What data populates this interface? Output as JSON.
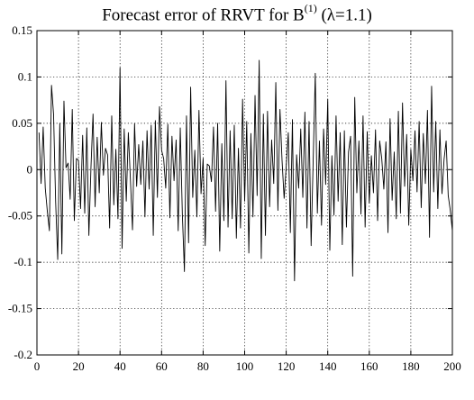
{
  "title": {
    "prefix": "Forecast error of RRVT for B",
    "superscript": "(1)",
    "suffix": " (λ=1.1)"
  },
  "colors": {
    "line": "#000000",
    "grid": "#000000",
    "axis": "#000000",
    "background": "#ffffff"
  },
  "chart_data": {
    "type": "line",
    "title": "Forecast error of RRVT for B(1) (λ=1.1)",
    "xlabel": "",
    "ylabel": "",
    "xlim": [
      0,
      200
    ],
    "ylim": [
      -0.2,
      0.15
    ],
    "grid": true,
    "grid_style": "dotted",
    "x_ticks": [
      0,
      20,
      40,
      60,
      80,
      100,
      120,
      140,
      160,
      180,
      200
    ],
    "x_tick_labels": [
      "0",
      "20",
      "40",
      "60",
      "80",
      "100",
      "120",
      "140",
      "160",
      "180",
      "200"
    ],
    "y_ticks": [
      0.15,
      0.1,
      0.05,
      0,
      -0.05,
      -0.1,
      -0.15,
      -0.2
    ],
    "y_tick_labels": [
      "0.15",
      "0.1",
      "0.05",
      "0",
      "-0.05",
      "-0.1",
      "-0.15",
      "-0.2"
    ],
    "series": [
      {
        "x_start": 1,
        "x_step": 1,
        "values": [
          0.04,
          -0.015,
          0.046,
          -0.02,
          -0.045,
          -0.066,
          0.091,
          0.06,
          -0.035,
          -0.097,
          0.05,
          -0.091,
          0.074,
          0.002,
          0.007,
          -0.032,
          0.065,
          -0.055,
          0.012,
          0.01,
          -0.042,
          0.037,
          -0.047,
          0.045,
          -0.071,
          0.002,
          0.06,
          -0.04,
          0.035,
          -0.025,
          0.051,
          -0.006,
          0.023,
          0.016,
          -0.063,
          0.058,
          -0.038,
          0.022,
          -0.053,
          0.11,
          -0.085,
          0.044,
          -0.034,
          0.04,
          -0.011,
          -0.065,
          0.05,
          -0.018,
          0.027,
          -0.016,
          0.031,
          -0.051,
          0.042,
          -0.021,
          0.048,
          -0.071,
          0.053,
          -0.03,
          0.068,
          0.021,
          0.012,
          -0.02,
          0.049,
          -0.052,
          0.036,
          -0.012,
          0.032,
          -0.066,
          0.045,
          -0.048,
          -0.11,
          0.058,
          -0.079,
          0.089,
          -0.03,
          0.021,
          -0.051,
          0.064,
          -0.026,
          0.012,
          -0.082,
          0.006,
          0.004,
          -0.013,
          0.046,
          -0.045,
          0.05,
          -0.088,
          0.028,
          -0.055,
          0.096,
          -0.062,
          0.042,
          -0.053,
          0.048,
          -0.074,
          0.023,
          -0.063,
          0.076,
          -0.034,
          0.052,
          -0.09,
          0.039,
          -0.051,
          0.08,
          -0.028,
          0.118,
          -0.096,
          0.06,
          -0.071,
          0.063,
          -0.04,
          0.032,
          -0.015,
          0.094,
          -0.044,
          0.065,
          0.01,
          -0.031,
          0.003,
          0.04,
          -0.068,
          0.054,
          -0.12,
          0.016,
          -0.02,
          0.044,
          -0.03,
          0.062,
          -0.063,
          0.052,
          -0.082,
          0.011,
          0.104,
          -0.047,
          0.031,
          -0.06,
          0.044,
          -0.016,
          0.076,
          -0.087,
          0.015,
          -0.049,
          0.058,
          -0.034,
          0.04,
          -0.081,
          0.042,
          -0.062,
          0.019,
          0.036,
          -0.115,
          0.078,
          -0.025,
          0.031,
          -0.048,
          0.058,
          -0.062,
          0.041,
          -0.036,
          0.015,
          -0.025,
          0.043,
          -0.055,
          0.031,
          0.012,
          -0.021,
          0.03,
          -0.068,
          0.055,
          -0.033,
          0.019,
          -0.053,
          0.063,
          -0.047,
          0.072,
          -0.018,
          0.038,
          -0.06,
          0.022,
          -0.012,
          0.042,
          -0.024,
          0.052,
          -0.041,
          0.039,
          -0.015,
          0.064,
          -0.073,
          0.09,
          -0.024,
          0.052,
          -0.042,
          0.043,
          -0.026,
          0.011,
          0.031,
          -0.028,
          -0.044,
          -0.066
        ]
      }
    ]
  }
}
